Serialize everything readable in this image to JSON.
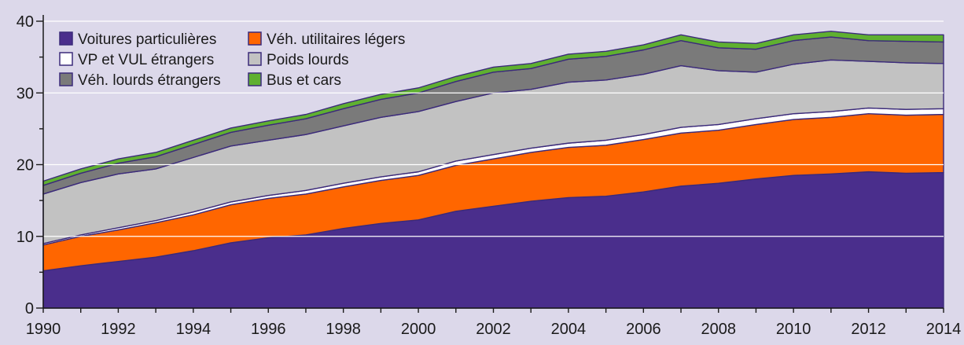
{
  "chart_data": {
    "type": "area",
    "stacked": true,
    "x": [
      1990,
      1991,
      1992,
      1993,
      1994,
      1995,
      1996,
      1997,
      1998,
      1999,
      2000,
      2001,
      2002,
      2003,
      2004,
      2005,
      2006,
      2007,
      2008,
      2009,
      2010,
      2011,
      2012,
      2013,
      2014
    ],
    "xticks": [
      "1990",
      "1992",
      "1994",
      "1996",
      "1998",
      "2000",
      "2002",
      "2004",
      "2006",
      "2008",
      "2010",
      "2012",
      "2014"
    ],
    "yticks": [
      "0",
      "10",
      "20",
      "30",
      "40"
    ],
    "ylim": [
      0,
      40
    ],
    "grid": "horizontal",
    "legend_position": "top-left",
    "series": [
      {
        "name": "Voitures particulières",
        "color": "#4a2e8c",
        "values": [
          5.2,
          5.9,
          6.5,
          7.1,
          8.0,
          9.1,
          9.8,
          10.2,
          11.1,
          11.8,
          12.3,
          13.5,
          14.2,
          14.9,
          15.4,
          15.6,
          16.2,
          17.0,
          17.4,
          18.0,
          18.5,
          18.7,
          19.0,
          18.8,
          18.9
        ]
      },
      {
        "name": "Véh. utilitaires légers",
        "color": "#ff6600",
        "values": [
          3.6,
          4.1,
          4.4,
          4.8,
          5.0,
          5.3,
          5.5,
          5.7,
          5.8,
          6.0,
          6.2,
          6.4,
          6.6,
          6.8,
          7.0,
          7.1,
          7.3,
          7.4,
          7.4,
          7.6,
          7.8,
          7.9,
          8.1,
          8.1,
          8.1
        ]
      },
      {
        "name": "VP et VUL étrangers",
        "color": "#ffffff",
        "values": [
          0.2,
          0.2,
          0.3,
          0.3,
          0.4,
          0.4,
          0.4,
          0.5,
          0.5,
          0.5,
          0.5,
          0.6,
          0.6,
          0.6,
          0.6,
          0.7,
          0.7,
          0.8,
          0.8,
          0.8,
          0.8,
          0.8,
          0.8,
          0.8,
          0.8
        ]
      },
      {
        "name": "Poids lourds",
        "color": "#c2c2c2",
        "values": [
          6.9,
          7.3,
          7.5,
          7.2,
          7.6,
          7.8,
          7.7,
          7.8,
          8.0,
          8.3,
          8.4,
          8.3,
          8.6,
          8.2,
          8.5,
          8.4,
          8.4,
          8.6,
          7.5,
          6.5,
          6.9,
          7.2,
          6.5,
          6.5,
          6.3
        ]
      },
      {
        "name": "Véh. lourds étrangers",
        "color": "#7a7a7a",
        "values": [
          1.2,
          1.3,
          1.5,
          1.7,
          1.8,
          1.9,
          2.1,
          2.2,
          2.4,
          2.5,
          2.6,
          2.8,
          2.9,
          2.9,
          3.2,
          3.3,
          3.4,
          3.5,
          3.2,
          3.2,
          3.3,
          3.2,
          2.9,
          3.0,
          3.0
        ]
      },
      {
        "name": "Bus et cars",
        "color": "#5fb030",
        "values": [
          0.6,
          0.6,
          0.6,
          0.6,
          0.6,
          0.6,
          0.6,
          0.6,
          0.7,
          0.7,
          0.7,
          0.7,
          0.7,
          0.7,
          0.7,
          0.7,
          0.7,
          0.8,
          0.8,
          0.8,
          0.8,
          0.8,
          0.8,
          0.9,
          1.0
        ]
      }
    ]
  }
}
